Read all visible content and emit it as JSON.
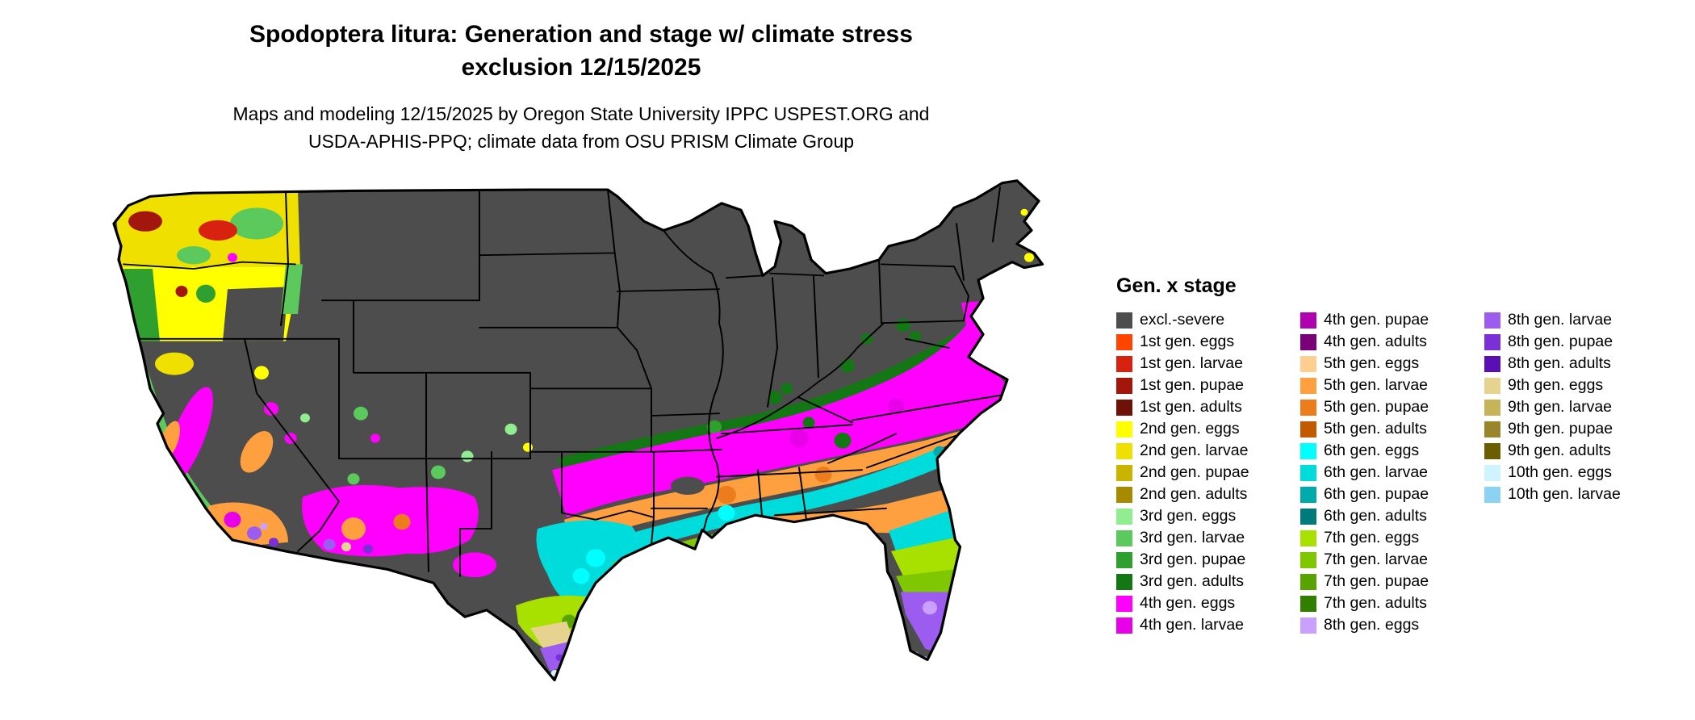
{
  "header": {
    "title_line1": "Spodoptera litura: Generation and stage w/ climate stress",
    "title_line2": "exclusion 12/15/2025",
    "subtitle_line1": "Maps and modeling 12/15/2025 by Oregon State University IPPC USPEST.ORG and",
    "subtitle_line2": "USDA-APHIS-PPQ; climate data from OSU PRISM Climate Group"
  },
  "legend": {
    "title": "Gen. x stage",
    "columns": [
      [
        {
          "label": "excl.-severe",
          "key": "excl_severe"
        },
        {
          "label": "1st gen. eggs",
          "key": "g1_eggs"
        },
        {
          "label": "1st gen. larvae",
          "key": "g1_larvae"
        },
        {
          "label": "1st gen. pupae",
          "key": "g1_pupae"
        },
        {
          "label": "1st gen. adults",
          "key": "g1_adults"
        },
        {
          "label": "2nd gen. eggs",
          "key": "g2_eggs"
        },
        {
          "label": "2nd gen. larvae",
          "key": "g2_larvae"
        },
        {
          "label": "2nd gen. pupae",
          "key": "g2_pupae"
        },
        {
          "label": "2nd gen. adults",
          "key": "g2_adults"
        },
        {
          "label": "3rd gen. eggs",
          "key": "g3_eggs"
        },
        {
          "label": "3rd gen. larvae",
          "key": "g3_larvae"
        },
        {
          "label": "3rd gen. pupae",
          "key": "g3_pupae"
        },
        {
          "label": "3rd gen. adults",
          "key": "g3_adults"
        },
        {
          "label": "4th gen. eggs",
          "key": "g4_eggs"
        },
        {
          "label": "4th gen. larvae",
          "key": "g4_larvae"
        }
      ],
      [
        {
          "label": "4th gen. pupae",
          "key": "g4_pupae"
        },
        {
          "label": "4th gen. adults",
          "key": "g4_adults"
        },
        {
          "label": "5th gen. eggs",
          "key": "g5_eggs"
        },
        {
          "label": "5th gen. larvae",
          "key": "g5_larvae"
        },
        {
          "label": "5th gen. pupae",
          "key": "g5_pupae"
        },
        {
          "label": "5th gen. adults",
          "key": "g5_adults"
        },
        {
          "label": "6th gen. eggs",
          "key": "g6_eggs"
        },
        {
          "label": "6th gen. larvae",
          "key": "g6_larvae"
        },
        {
          "label": "6th gen. pupae",
          "key": "g6_pupae"
        },
        {
          "label": "6th gen. adults",
          "key": "g6_adults"
        },
        {
          "label": "7th gen. eggs",
          "key": "g7_eggs"
        },
        {
          "label": "7th gen. larvae",
          "key": "g7_larvae"
        },
        {
          "label": "7th gen. pupae",
          "key": "g7_pupae"
        },
        {
          "label": "7th gen. adults",
          "key": "g7_adults"
        },
        {
          "label": "8th gen. eggs",
          "key": "g8_eggs"
        }
      ],
      [
        {
          "label": "8th gen. larvae",
          "key": "g8_larvae"
        },
        {
          "label": "8th gen. pupae",
          "key": "g8_pupae"
        },
        {
          "label": "8th gen. adults",
          "key": "g8_adults"
        },
        {
          "label": "9th gen. eggs",
          "key": "g9_eggs"
        },
        {
          "label": "9th gen. larvae",
          "key": "g9_larvae"
        },
        {
          "label": "9th gen. pupae",
          "key": "g9_pupae"
        },
        {
          "label": "9th gen. adults",
          "key": "g9_adults"
        },
        {
          "label": "10th gen. eggs",
          "key": "g10_eggs"
        },
        {
          "label": "10th gen. larvae",
          "key": "g10_larvae"
        }
      ]
    ]
  },
  "map": {
    "palette": {
      "excl_severe": "#4d4d4d",
      "g1_eggs": "#ff4500",
      "g1_larvae": "#d6220f",
      "g1_pupae": "#a3160b",
      "g1_adults": "#701107",
      "g2_eggs": "#ffff00",
      "g2_larvae": "#efe000",
      "g2_pupae": "#c9b400",
      "g2_adults": "#a68a00",
      "g3_eggs": "#90ee90",
      "g3_larvae": "#5cc95c",
      "g3_pupae": "#2fa02f",
      "g3_adults": "#137813",
      "g4_eggs": "#ff00ff",
      "g4_larvae": "#e800e8",
      "g4_pupae": "#b000b0",
      "g4_adults": "#7a007a",
      "g5_eggs": "#ffcf8f",
      "g5_larvae": "#ffa040",
      "g5_pupae": "#ed7d1c",
      "g5_adults": "#c25a00",
      "g6_eggs": "#00ffff",
      "g6_larvae": "#00dbdb",
      "g6_pupae": "#00aaaa",
      "g6_adults": "#007a7a",
      "g7_eggs": "#a8e000",
      "g7_larvae": "#7fc700",
      "g7_pupae": "#59a300",
      "g7_adults": "#327f00",
      "g8_eggs": "#c9a0ff",
      "g8_larvae": "#9d5cf0",
      "g8_pupae": "#7b2fd6",
      "g8_adults": "#5a0fb4",
      "g9_eggs": "#e6d38f",
      "g9_larvae": "#c7b45a",
      "g9_pupae": "#99862b",
      "g9_adults": "#6b5e00",
      "g10_eggs": "#cff4ff",
      "g10_larvae": "#8cd2f5"
    }
  }
}
